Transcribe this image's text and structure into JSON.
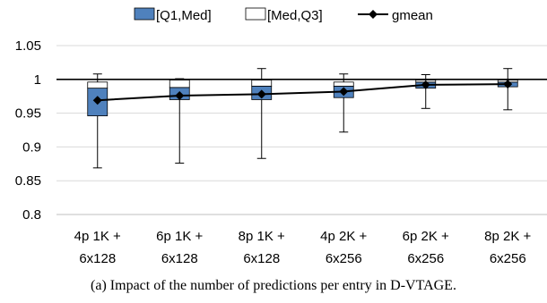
{
  "chart_data": {
    "type": "box",
    "categories": [
      [
        "4p 1K +",
        "6x128"
      ],
      [
        "6p 1K +",
        "6x128"
      ],
      [
        "8p 1K +",
        "6x128"
      ],
      [
        "4p 2K +",
        "6x256"
      ],
      [
        "6p 2K +",
        "6x256"
      ],
      [
        "8p 2K +",
        "6x256"
      ]
    ],
    "legend": {
      "position": "top-center",
      "entries": [
        "[Q1,Med]",
        "[Med,Q3]",
        "gmean"
      ]
    },
    "series": [
      {
        "name": "min",
        "values": [
          0.869,
          0.876,
          0.883,
          0.922,
          0.957,
          0.955
        ]
      },
      {
        "name": "Q1",
        "values": [
          0.946,
          0.97,
          0.97,
          0.973,
          0.987,
          0.989
        ]
      },
      {
        "name": "Med",
        "values": [
          0.987,
          0.988,
          0.99,
          0.99,
          0.996,
          0.996
        ]
      },
      {
        "name": "Q3",
        "values": [
          0.996,
          0.999,
          0.999,
          0.996,
          0.999,
          0.999
        ]
      },
      {
        "name": "max",
        "values": [
          1.008,
          1.001,
          1.016,
          1.008,
          1.007,
          1.016
        ]
      },
      {
        "name": "gmean",
        "values": [
          0.969,
          0.976,
          0.978,
          0.982,
          0.992,
          0.993
        ]
      }
    ],
    "reference_line": 1,
    "ylim": [
      0.8,
      1.05
    ],
    "yticks": [
      0.8,
      0.85,
      0.9,
      0.95,
      1,
      1.05
    ],
    "ytick_labels": [
      "0.8",
      "0.85",
      "0.9",
      "0.95",
      "1",
      "1.05"
    ],
    "grid": true,
    "colors": {
      "lower_box": "#4f81bd",
      "upper_box": "#ffffff",
      "gmean_line": "#000000",
      "grid": "#d9d9d9"
    }
  },
  "caption": "(a) Impact of the number of predictions per entry in D-VTAGE."
}
